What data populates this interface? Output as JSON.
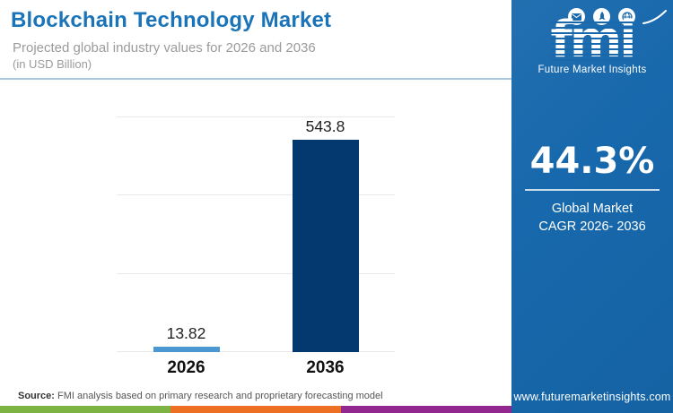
{
  "header": {
    "title": "Blockchain Technology Market",
    "subtitle": "Projected global industry values for 2026 and 2036",
    "unit_note": "(in USD Billion)"
  },
  "chart_data": {
    "type": "bar",
    "categories": [
      "2026",
      "2036"
    ],
    "values": [
      13.82,
      543.8
    ],
    "data_labels": [
      "13.82",
      "543.8"
    ],
    "title": "Blockchain Technology Market",
    "xlabel": "",
    "ylabel": "USD Billion",
    "ylim": [
      0,
      600
    ],
    "gridline_values": [
      0,
      200,
      400,
      600
    ],
    "y_axis_labels_visible": false,
    "legend": "none",
    "bar_colors": [
      "#4A97D2",
      "#04396F"
    ]
  },
  "sidebar": {
    "background": "#1768AC",
    "logo": {
      "text": "fmi",
      "tagline": "Future Market Insights",
      "icons": [
        "mail-icon",
        "rocket-icon",
        "globe-icon"
      ]
    },
    "stat": {
      "value": "44.3%",
      "caption_line1": "Global Market",
      "caption_line2": "CAGR 2026- 2036"
    },
    "website": "www.futuremarketinsights.com"
  },
  "footer": {
    "source_label": "Source:",
    "source_text": " FMI analysis based on primary research and proprietary forecasting model",
    "stripe_colors": [
      "#7CB342",
      "#EC6F23",
      "#92278F"
    ]
  }
}
